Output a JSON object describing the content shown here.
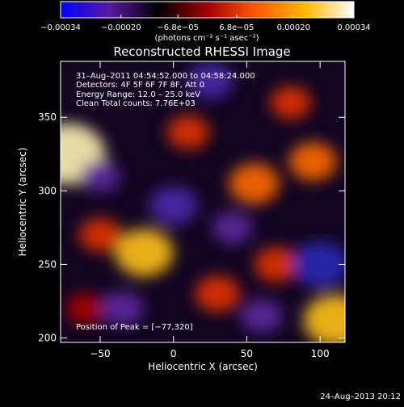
{
  "colorbar": {
    "tick_labels": [
      "−0.00034",
      "−0.00020",
      "−6.8e−05",
      "6.8e−05",
      "0.00020",
      "0.00034"
    ],
    "tick_values": [
      -0.00034,
      -0.0002,
      -6.8e-05,
      6.8e-05,
      0.0002,
      0.00034
    ],
    "range": [
      -0.00034,
      0.00034
    ],
    "unit_label": "(photons cm⁻² s⁻¹ asec⁻²)",
    "colors": [
      "#0000ff",
      "#5a1aa0",
      "#000000",
      "#a30000",
      "#ff5a00",
      "#ffb800",
      "#ffffff"
    ]
  },
  "chart_data": {
    "type": "heatmap",
    "title": "Reconstructed RHESSI Image",
    "xlabel": "Heliocentric X (arcsec)",
    "ylabel": "Heliocentric Y (arcsec)",
    "xlim": [
      -77,
      117
    ],
    "ylim": [
      197,
      388
    ],
    "xticks": [
      -50,
      0,
      50,
      100
    ],
    "yticks": [
      200,
      250,
      300,
      350
    ],
    "xtick_labels": [
      "−50",
      "0",
      "50",
      "100"
    ],
    "ytick_labels": [
      "200",
      "250",
      "300",
      "350"
    ],
    "info_lines": [
      "31–Aug–2011 04:54:52.000 to 04:58:24.000",
      "Detectors: 4F 5F 6F 7F 8F, Att 0",
      "Energy Range: 12.0 – 25.0 keV",
      "Clean     Total counts: 7.76E+03"
    ],
    "peak_label": "Position of Peak = [−77,320]",
    "peak_position": [
      -77,
      320
    ],
    "blobs": [
      {
        "x": -72,
        "y": 325,
        "value": 0.00034
      },
      {
        "x": -20,
        "y": 258,
        "value": 0.00022
      },
      {
        "x": 110,
        "y": 212,
        "value": 0.00025
      },
      {
        "x": 55,
        "y": 305,
        "value": 0.00016
      },
      {
        "x": 95,
        "y": 320,
        "value": 0.00014
      },
      {
        "x": 30,
        "y": 230,
        "value": 0.00012
      },
      {
        "x": -50,
        "y": 270,
        "value": 0.0001
      },
      {
        "x": 70,
        "y": 250,
        "value": 0.00011
      },
      {
        "x": 10,
        "y": 340,
        "value": 0.0001
      },
      {
        "x": -60,
        "y": 220,
        "value": 8e-05
      },
      {
        "x": 80,
        "y": 360,
        "value": 9e-05
      },
      {
        "x": 0,
        "y": 290,
        "value": -0.00014
      },
      {
        "x": 100,
        "y": 250,
        "value": -0.0002
      },
      {
        "x": 25,
        "y": 375,
        "value": -0.00012
      },
      {
        "x": -35,
        "y": 220,
        "value": -0.0001
      },
      {
        "x": 60,
        "y": 215,
        "value": -9e-05
      },
      {
        "x": -50,
        "y": 310,
        "value": -8e-05
      },
      {
        "x": 40,
        "y": 275,
        "value": -8e-05
      }
    ]
  },
  "footer": {
    "date": "24–Aug–2013 20:12"
  }
}
